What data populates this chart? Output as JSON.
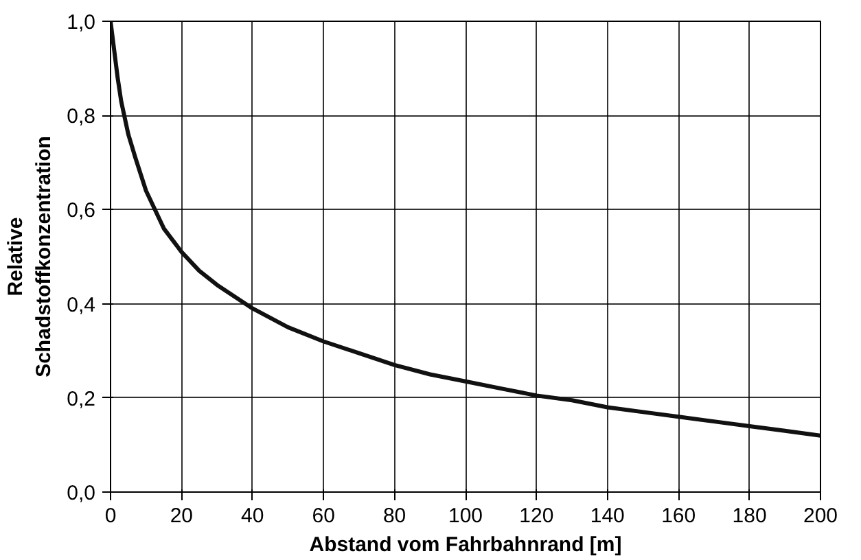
{
  "chart_data": {
    "type": "line",
    "xlabel": "Abstand vom Fahrbahnrand [m]",
    "ylabel": "Relative\nSchadstoffkonzentration",
    "x": [
      0,
      1,
      2,
      3,
      5,
      7,
      10,
      15,
      20,
      25,
      30,
      40,
      50,
      60,
      70,
      80,
      90,
      100,
      110,
      120,
      130,
      140,
      150,
      160,
      170,
      180,
      190,
      200
    ],
    "series": [
      {
        "color": "#111111",
        "values": [
          1.0,
          0.94,
          0.88,
          0.83,
          0.76,
          0.71,
          0.64,
          0.56,
          0.51,
          0.47,
          0.44,
          0.39,
          0.35,
          0.32,
          0.295,
          0.27,
          0.25,
          0.235,
          0.22,
          0.205,
          0.195,
          0.18,
          0.17,
          0.16,
          0.15,
          0.14,
          0.13,
          0.12
        ]
      }
    ],
    "xlim": [
      0,
      200
    ],
    "xticks": [
      0,
      20,
      40,
      60,
      80,
      100,
      120,
      140,
      160,
      180,
      200
    ],
    "ylim": [
      0,
      1.0
    ],
    "yticks": [
      {
        "value": 0.0,
        "label": "0,0"
      },
      {
        "value": 0.2,
        "label": "0,2"
      },
      {
        "value": 0.4,
        "label": "0,4"
      },
      {
        "value": 0.6,
        "label": "0,6"
      },
      {
        "value": 0.8,
        "label": "0,8"
      },
      {
        "value": 1.0,
        "label": "1,0"
      }
    ],
    "grid": true,
    "marker": "none",
    "line_style": "solid"
  }
}
